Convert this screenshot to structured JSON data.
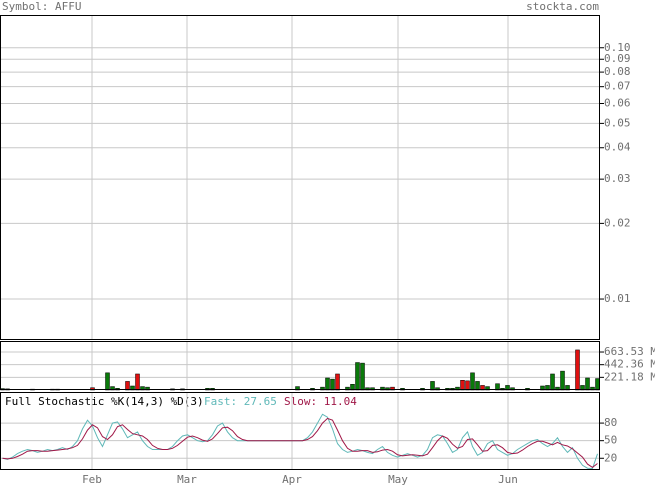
{
  "header": {
    "symbol": "Symbol: AFFU",
    "source": "stockta.com"
  },
  "chart_data": [
    {
      "type": "line",
      "log_scale": true,
      "grid": true,
      "xlim": [
        0,
        120
      ],
      "ylim": [
        0.00687,
        0.135
      ],
      "yticks": [
        {
          "value": 0.1,
          "label": "0.10"
        },
        0.09,
        0.08,
        0.07,
        0.06,
        0.05,
        0.04,
        0.03,
        0.02,
        0.01
      ],
      "series": []
    },
    {
      "type": "bar",
      "grid": true,
      "xlim": [
        0,
        120
      ],
      "ylim": [
        0,
        856
      ],
      "yticks": [
        {
          "value": 663.53,
          "label": "663.53 M"
        },
        {
          "value": 442.36,
          "label": "442.36 M"
        },
        {
          "value": 221.18,
          "label": "221.18 M"
        }
      ],
      "values": [
        25,
        20,
        0,
        0,
        0,
        0,
        15,
        0,
        0,
        0,
        15,
        15,
        0,
        0,
        0,
        0,
        0,
        0,
        40,
        0,
        0,
        300,
        60,
        30,
        0,
        150,
        70,
        280,
        60,
        50,
        0,
        0,
        0,
        0,
        20,
        0,
        20,
        0,
        0,
        0,
        0,
        30,
        30,
        0,
        0,
        0,
        0,
        0,
        0,
        0,
        0,
        0,
        0,
        0,
        0,
        0,
        0,
        0,
        0,
        60,
        0,
        0,
        30,
        0,
        50,
        210,
        190,
        280,
        0,
        50,
        100,
        480,
        470,
        40,
        40,
        0,
        50,
        40,
        50,
        0,
        30,
        0,
        0,
        0,
        30,
        0,
        150,
        40,
        0,
        30,
        30,
        50,
        170,
        160,
        300,
        150,
        80,
        60,
        0,
        110,
        30,
        80,
        40,
        0,
        0,
        30,
        0,
        0,
        70,
        80,
        280,
        50,
        330,
        80,
        0,
        700,
        80,
        210,
        50,
        200
      ],
      "colors": [
        "#0a7a0a",
        "#0a7a0a",
        "#0a7a0a",
        "#0a7a0a",
        "#0a7a0a",
        "#0a7a0a",
        "#0a7a0a",
        "#0a7a0a",
        "#0a7a0a",
        "#0a7a0a",
        "#0a7a0a",
        "#0a7a0a",
        "#0a7a0a",
        "#0a7a0a",
        "#0a7a0a",
        "#0a7a0a",
        "#0a7a0a",
        "#0a7a0a",
        "#e01010",
        "#0a7a0a",
        "#0a7a0a",
        "#0a7a0a",
        "#0a7a0a",
        "#0a7a0a",
        "#0a7a0a",
        "#e01010",
        "#0a7a0a",
        "#e01010",
        "#0a7a0a",
        "#0a7a0a",
        "#0a7a0a",
        "#0a7a0a",
        "#0a7a0a",
        "#0a7a0a",
        "#0a7a0a",
        "#0a7a0a",
        "#0a7a0a",
        "#0a7a0a",
        "#0a7a0a",
        "#0a7a0a",
        "#0a7a0a",
        "#0a7a0a",
        "#0a7a0a",
        "#0a7a0a",
        "#0a7a0a",
        "#0a7a0a",
        "#0a7a0a",
        "#0a7a0a",
        "#0a7a0a",
        "#0a7a0a",
        "#0a7a0a",
        "#0a7a0a",
        "#0a7a0a",
        "#0a7a0a",
        "#0a7a0a",
        "#0a7a0a",
        "#0a7a0a",
        "#0a7a0a",
        "#0a7a0a",
        "#0a7a0a",
        "#0a7a0a",
        "#0a7a0a",
        "#0a7a0a",
        "#0a7a0a",
        "#0a7a0a",
        "#0a7a0a",
        "#0a7a0a",
        "#e01010",
        "#0a7a0a",
        "#0a7a0a",
        "#0a7a0a",
        "#0a7a0a",
        "#0a7a0a",
        "#0a7a0a",
        "#0a7a0a",
        "#0a7a0a",
        "#0a7a0a",
        "#0a7a0a",
        "#e01010",
        "#0a7a0a",
        "#0a7a0a",
        "#0a7a0a",
        "#0a7a0a",
        "#0a7a0a",
        "#0a7a0a",
        "#0a7a0a",
        "#0a7a0a",
        "#0a7a0a",
        "#0a7a0a",
        "#0a7a0a",
        "#0a7a0a",
        "#0a7a0a",
        "#e01010",
        "#e01010",
        "#0a7a0a",
        "#0a7a0a",
        "#e01010",
        "#0a7a0a",
        "#0a7a0a",
        "#0a7a0a",
        "#0a7a0a",
        "#0a7a0a",
        "#0a7a0a",
        "#0a7a0a",
        "#0a7a0a",
        "#0a7a0a",
        "#0a7a0a",
        "#0a7a0a",
        "#0a7a0a",
        "#0a7a0a",
        "#0a7a0a",
        "#0a7a0a",
        "#0a7a0a",
        "#0a7a0a",
        "#0a7a0a",
        "#e01010",
        "#0a7a0a",
        "#0a7a0a",
        "#0a7a0a",
        "#0a7a0a"
      ]
    },
    {
      "type": "line",
      "title": "Full Stochastic %K(14,3) %D(3)",
      "grid": true,
      "xlim": [
        0,
        120
      ],
      "ylim": [
        0,
        133
      ],
      "yticks": [
        80,
        50,
        20
      ],
      "xticks": [
        {
          "value": 18.4,
          "label": "Feb"
        },
        {
          "value": 37.4,
          "label": "Mar"
        },
        {
          "value": 58.4,
          "label": "Apr"
        },
        {
          "value": 79.6,
          "label": "May"
        },
        {
          "value": 101.6,
          "label": "Jun"
        }
      ],
      "series": [
        {
          "name": "Fast:",
          "color": "#5fb8b8",
          "values": [
            20,
            18,
            22,
            28,
            32,
            35,
            33,
            30,
            32,
            35,
            33,
            35,
            38,
            35,
            40,
            50,
            70,
            85,
            75,
            55,
            40,
            60,
            80,
            82,
            70,
            55,
            60,
            65,
            50,
            40,
            35,
            35,
            35,
            35,
            40,
            50,
            58,
            60,
            55,
            50,
            48,
            50,
            60,
            75,
            80,
            65,
            55,
            50,
            50,
            50,
            50,
            50,
            50,
            50,
            50,
            50,
            50,
            50,
            50,
            50,
            50,
            55,
            65,
            80,
            95,
            90,
            70,
            45,
            35,
            30,
            32,
            35,
            33,
            30,
            28,
            35,
            40,
            30,
            25,
            22,
            25,
            28,
            25,
            22,
            25,
            35,
            55,
            60,
            58,
            45,
            30,
            35,
            55,
            65,
            40,
            25,
            30,
            45,
            50,
            35,
            30,
            25,
            28,
            35,
            40,
            45,
            50,
            52,
            45,
            40,
            45,
            55,
            40,
            30,
            38,
            20,
            8,
            3,
            2.5,
            27.65
          ]
        },
        {
          "name": "Slow:",
          "color": "#a01848",
          "values": [
            20,
            19,
            20,
            23,
            27,
            32,
            33,
            33,
            32,
            32,
            33,
            34,
            35,
            36,
            38,
            42,
            53,
            68,
            77,
            72,
            57,
            52,
            60,
            74,
            77,
            69,
            62,
            60,
            58,
            52,
            42,
            37,
            35,
            35,
            37,
            42,
            49,
            56,
            58,
            55,
            51,
            49,
            53,
            62,
            72,
            73,
            67,
            57,
            52,
            50,
            50,
            50,
            50,
            50,
            50,
            50,
            50,
            50,
            50,
            50,
            50,
            52,
            57,
            67,
            80,
            88,
            85,
            68,
            50,
            37,
            32,
            32,
            33,
            33,
            30,
            31,
            34,
            35,
            32,
            26,
            24,
            25,
            26,
            25,
            24,
            27,
            38,
            50,
            58,
            54,
            44,
            37,
            40,
            52,
            53,
            43,
            32,
            33,
            42,
            43,
            38,
            30,
            28,
            29,
            34,
            40,
            45,
            49,
            49,
            46,
            43,
            47,
            43,
            41,
            36,
            29,
            22,
            10,
            4.5,
            11.04
          ]
        }
      ]
    }
  ]
}
